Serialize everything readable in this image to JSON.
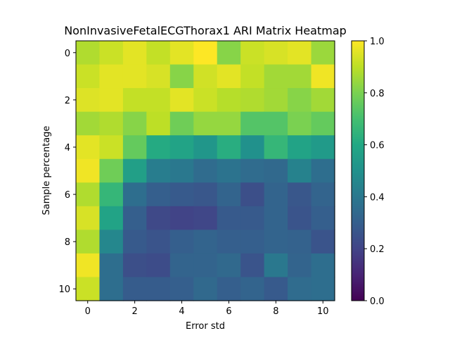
{
  "chart_data": {
    "type": "heatmap",
    "title": "NonInvasiveFetalECGThorax1 ARI Matrix Heatmap",
    "xlabel": "Error std",
    "ylabel": "Sample percentage",
    "x_ticks": [
      0,
      2,
      4,
      6,
      8,
      10
    ],
    "y_ticks": [
      0,
      2,
      4,
      6,
      8,
      10
    ],
    "colorbar_ticks": [
      "0.0",
      "0.2",
      "0.4",
      "0.6",
      "0.8",
      "1.0"
    ],
    "vmin": 0.0,
    "vmax": 1.0,
    "colormap": "viridis",
    "matrix": [
      [
        0.88,
        0.92,
        0.96,
        0.91,
        0.96,
        1.0,
        0.82,
        0.92,
        0.94,
        0.96,
        0.85
      ],
      [
        0.92,
        0.96,
        0.96,
        0.94,
        0.82,
        0.93,
        0.96,
        0.91,
        0.86,
        0.86,
        0.98
      ],
      [
        0.95,
        0.96,
        0.91,
        0.91,
        0.96,
        0.92,
        0.89,
        0.88,
        0.86,
        0.82,
        0.86
      ],
      [
        0.86,
        0.88,
        0.82,
        0.9,
        0.78,
        0.84,
        0.84,
        0.73,
        0.73,
        0.8,
        0.76
      ],
      [
        0.96,
        0.92,
        0.76,
        0.61,
        0.58,
        0.52,
        0.62,
        0.5,
        0.66,
        0.58,
        0.54
      ],
      [
        0.98,
        0.78,
        0.56,
        0.42,
        0.4,
        0.35,
        0.38,
        0.35,
        0.34,
        0.44,
        0.36
      ],
      [
        0.88,
        0.66,
        0.36,
        0.3,
        0.28,
        0.27,
        0.32,
        0.24,
        0.32,
        0.27,
        0.32
      ],
      [
        0.94,
        0.58,
        0.3,
        0.22,
        0.2,
        0.21,
        0.28,
        0.28,
        0.32,
        0.26,
        0.3
      ],
      [
        0.88,
        0.46,
        0.28,
        0.26,
        0.3,
        0.32,
        0.3,
        0.3,
        0.32,
        0.31,
        0.26
      ],
      [
        0.98,
        0.36,
        0.24,
        0.23,
        0.32,
        0.32,
        0.34,
        0.26,
        0.4,
        0.32,
        0.36
      ],
      [
        0.92,
        0.36,
        0.29,
        0.29,
        0.3,
        0.34,
        0.3,
        0.32,
        0.28,
        0.35,
        0.36
      ]
    ]
  }
}
